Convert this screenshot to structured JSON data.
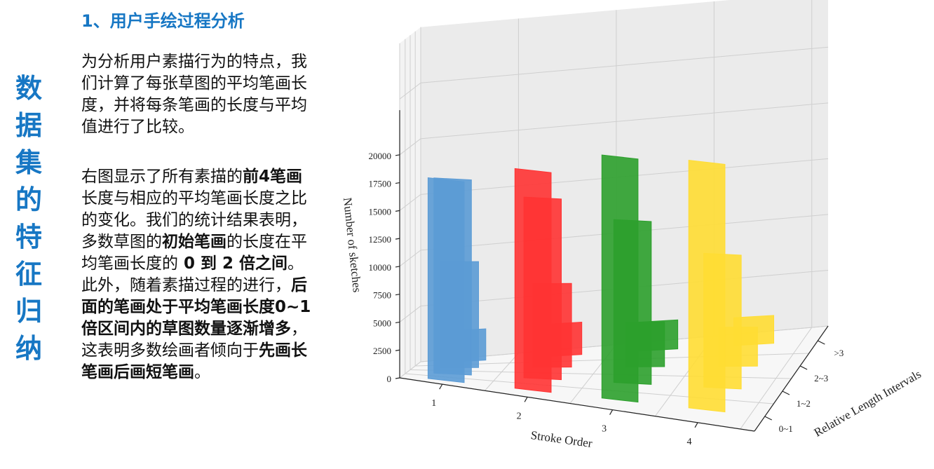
{
  "side_title": [
    "数",
    "据",
    "集",
    "的",
    "特",
    "征",
    "归",
    "纳"
  ],
  "heading": "1、用户手绘过程分析",
  "para1": "为分析用户素描行为的特点，我们计算了每张草图的平均笔画长度，并将每条笔画的长度与平均值进行了比较。",
  "para2_runs": [
    {
      "text": "右图显示了所有素描的",
      "bold": false
    },
    {
      "text": "前4笔画",
      "bold": true
    },
    {
      "text": "长度与相应的平均笔画长度之比的变化。我们的统计结果表明，多数草图的",
      "bold": false
    },
    {
      "text": "初始笔画",
      "bold": true
    },
    {
      "text": "的长度在平均笔画长度的",
      "bold": false
    },
    {
      "text": " 0 到 2 倍之间",
      "bold": true
    },
    {
      "text": "。此外，随着素描过程的进行，",
      "bold": false
    },
    {
      "text": "后面的笔画处于平均笔画长度0~1倍区间内的草图数量逐渐增多",
      "bold": true
    },
    {
      "text": "，这表明多数绘画者倾向于",
      "bold": false
    },
    {
      "text": "先画长笔画后画短笔画",
      "bold": true
    },
    {
      "text": "。",
      "bold": false
    }
  ],
  "chart_data": {
    "type": "bar",
    "subtype": "3d-bar",
    "xlabel": "Stroke Order",
    "ylabel": "Relative Length Intervals",
    "zlabel": "Number of sketches",
    "x_categories": [
      "1",
      "2",
      "3",
      "4"
    ],
    "y_categories": [
      "0~1",
      "1~2",
      "2~3",
      ">3"
    ],
    "z_ticks": [
      "0",
      "2500",
      "5000",
      "7500",
      "10000",
      "12500",
      "15000",
      "17500",
      "20000"
    ],
    "zlim": [
      0,
      22000
    ],
    "colors": [
      "#5b9bd5",
      "#ff3333",
      "#2ca02c",
      "#ffdd33"
    ],
    "series": [
      {
        "values": [
          18000,
          17500,
          9500,
          2800
        ]
      },
      {
        "values": [
          19700,
          16200,
          7500,
          2900
        ]
      },
      {
        "values": [
          21800,
          14600,
          4000,
          2600
        ]
      },
      {
        "values": [
          22200,
          12000,
          3500,
          2500
        ]
      }
    ]
  }
}
